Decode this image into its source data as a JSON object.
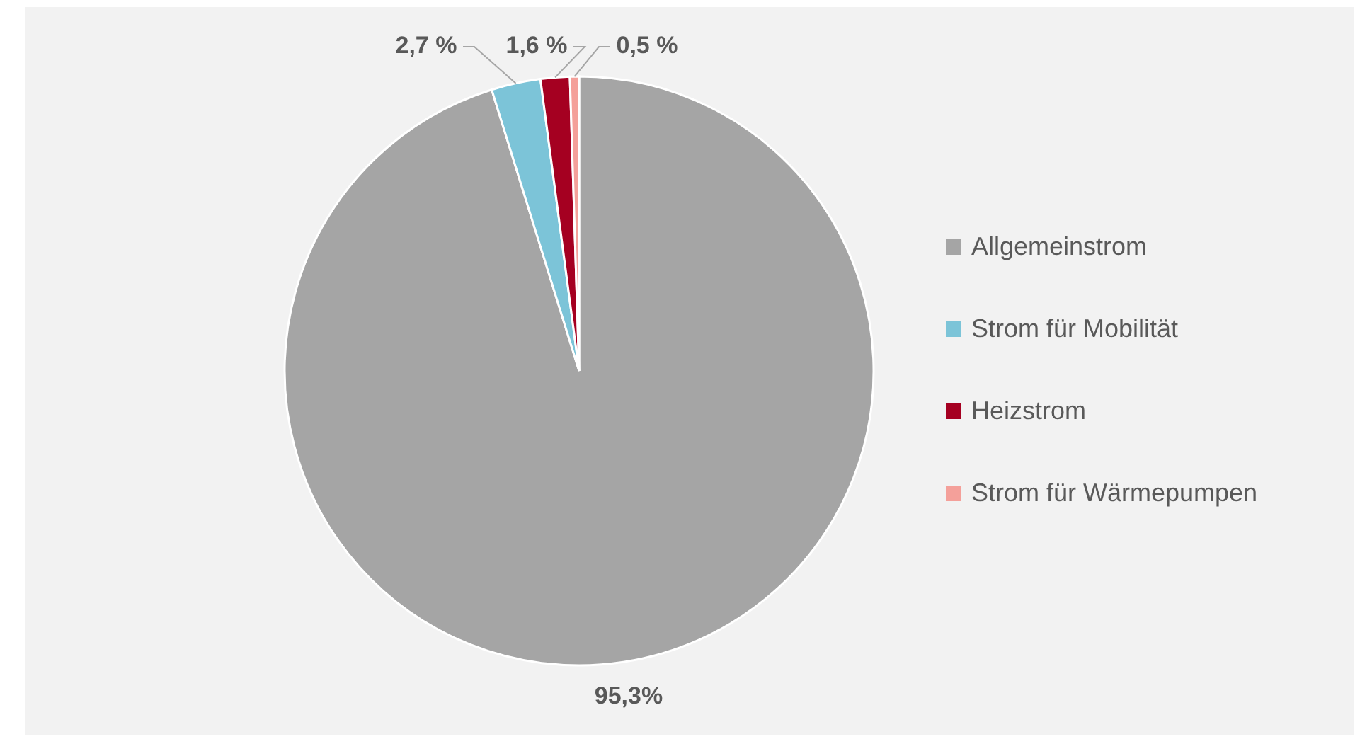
{
  "chart_data": {
    "type": "pie",
    "categories": [
      "Allgemeinstrom",
      "Strom für Mobilität",
      "Heizstrom",
      "Strom für Wärmepumpen"
    ],
    "values": [
      95.3,
      2.7,
      1.6,
      0.5
    ],
    "colors": [
      "#a5a5a5",
      "#7cc4d8",
      "#a50021",
      "#f4a09a"
    ],
    "value_labels": [
      "95,3%",
      "2,7 %",
      "1,6 %",
      "0,5 %"
    ],
    "legend": "right"
  }
}
